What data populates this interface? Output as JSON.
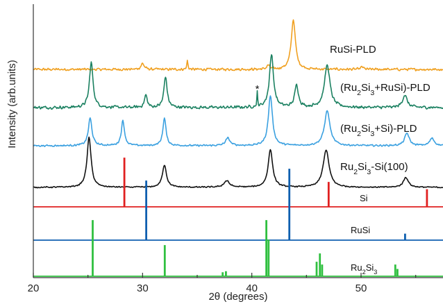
{
  "chart_data": {
    "type": "line",
    "xlabel": "2θ (degrees)",
    "ylabel": "Intensity (arb.units)",
    "xlim": [
      20,
      57.5
    ],
    "xticks": [
      20,
      30,
      40,
      50
    ],
    "grid": false,
    "legend": "inline labels right of each trace",
    "annotations": [
      {
        "text": "*",
        "x": 40.5,
        "series": "(Ru2Si3+RuSi)-PLD"
      }
    ],
    "series": [
      {
        "name": "RuSi-PLD",
        "label_parts": [
          "RuSi-PLD"
        ],
        "color": "#f0a020",
        "kind": "trace",
        "baseline": 0.0,
        "noise": 0.06,
        "peaks": [
          [
            30.0,
            0.12,
            0.35
          ],
          [
            34.1,
            0.18,
            0.12
          ],
          [
            41.5,
            0.08,
            0.3
          ],
          [
            43.8,
            1.0,
            0.45
          ],
          [
            50.1,
            0.05,
            0.3
          ]
        ]
      },
      {
        "name": "(Ru2Si3+RuSi)-PLD",
        "label_parts": [
          "(Ru",
          "2",
          "Si",
          "3",
          "+RuSi)-PLD"
        ],
        "color": "#1a8060",
        "kind": "trace",
        "baseline": 1.0,
        "noise": 0.07,
        "peaks": [
          [
            25.3,
            0.9,
            0.4
          ],
          [
            30.3,
            0.25,
            0.3
          ],
          [
            32.1,
            0.62,
            0.35
          ],
          [
            40.5,
            0.28,
            0.08
          ],
          [
            41.8,
            1.05,
            0.45
          ],
          [
            44.1,
            0.45,
            0.4
          ],
          [
            46.9,
            0.85,
            0.6
          ],
          [
            54.0,
            0.25,
            0.5
          ]
        ]
      },
      {
        "name": "(Ru2Si3+Si)-PLD",
        "label_parts": [
          "(Ru",
          "2",
          "Si",
          "3",
          "+Si)-PLD"
        ],
        "color": "#3aa0e0",
        "kind": "trace",
        "baseline": 2.0,
        "noise": 0.04,
        "peaks": [
          [
            25.2,
            0.55,
            0.4
          ],
          [
            28.2,
            0.5,
            0.35
          ],
          [
            32.0,
            0.55,
            0.35
          ],
          [
            37.8,
            0.15,
            0.5
          ],
          [
            41.7,
            1.0,
            0.45
          ],
          [
            46.9,
            0.7,
            0.6
          ],
          [
            54.2,
            0.25,
            0.5
          ],
          [
            56.5,
            0.15,
            0.5
          ]
        ]
      },
      {
        "name": "Ru2Si3-Si(100)",
        "label_parts": [
          "Ru",
          "2",
          "Si",
          "3",
          "-Si(100)"
        ],
        "color": "#111111",
        "kind": "trace",
        "baseline": 3.0,
        "noise": 0.03,
        "peaks": [
          [
            25.1,
            1.0,
            0.45
          ],
          [
            32.0,
            0.45,
            0.45
          ],
          [
            37.7,
            0.13,
            0.6
          ],
          [
            41.7,
            0.75,
            0.5
          ],
          [
            46.8,
            0.75,
            0.65
          ],
          [
            54.1,
            0.2,
            0.55
          ]
        ]
      },
      {
        "name": "Si",
        "label_parts": [
          "Si"
        ],
        "color": "#e02020",
        "kind": "stick",
        "baseline": 4.0,
        "peaks": [
          [
            28.3,
            1.0
          ],
          [
            47.0,
            0.5
          ],
          [
            56.0,
            0.35
          ]
        ]
      },
      {
        "name": "RuSi",
        "label_parts": [
          "RuSi"
        ],
        "color": "#1060b0",
        "kind": "stick",
        "baseline": 5.0,
        "peaks": [
          [
            30.3,
            1.0
          ],
          [
            43.4,
            1.2
          ],
          [
            54.0,
            0.1
          ]
        ]
      },
      {
        "name": "Ru2Si3",
        "label_parts": [
          "Ru",
          "2",
          "Si",
          "3"
        ],
        "color": "#30c040",
        "kind": "stick",
        "baseline": 6.0,
        "peaks": [
          [
            25.4,
            1.0
          ],
          [
            32.0,
            0.55
          ],
          [
            37.3,
            0.06
          ],
          [
            37.6,
            0.08
          ],
          [
            41.3,
            1.0
          ],
          [
            41.5,
            0.65
          ],
          [
            45.9,
            0.25
          ],
          [
            46.2,
            0.4
          ],
          [
            46.4,
            0.2
          ],
          [
            53.1,
            0.2
          ],
          [
            53.3,
            0.12
          ]
        ]
      }
    ]
  }
}
